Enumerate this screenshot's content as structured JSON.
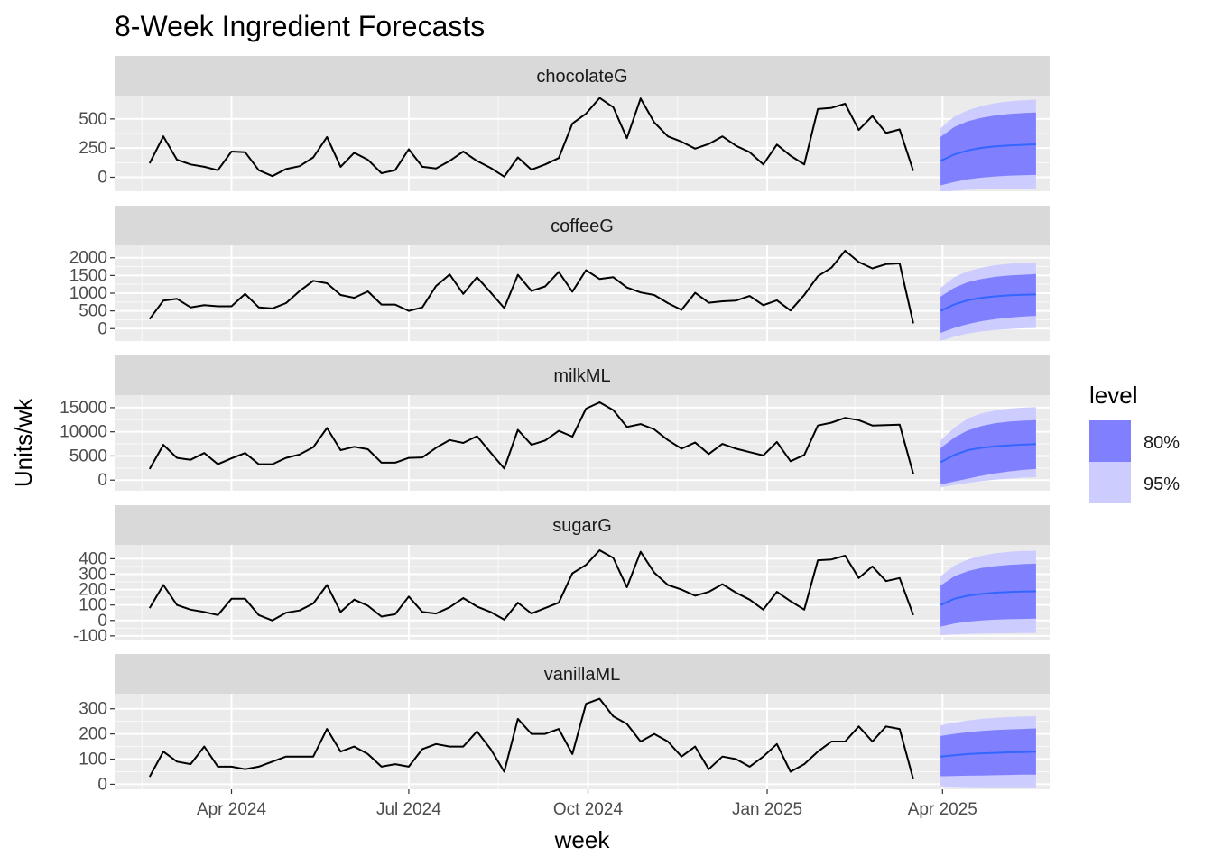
{
  "chart_data": {
    "type": "line",
    "title": "8-Week Ingredient Forecasts",
    "xlabel": "week",
    "ylabel": "Units/wk",
    "x_ticks": [
      "Apr 2024",
      "Jul 2024",
      "Oct 2024",
      "Jan 2025",
      "Apr 2025"
    ],
    "x_range": [
      "2024-02-01",
      "2025-05-26"
    ],
    "history_start": "2024-02-19",
    "forecast_start": "2025-03-31",
    "legend": {
      "title": "level",
      "position": "right",
      "entries": [
        {
          "label": "80%",
          "color": "#8080FF"
        },
        {
          "label": "95%",
          "color": "#CCCCFF"
        }
      ]
    },
    "colors": {
      "history_line": "#000000",
      "forecast_line": "#3366FF",
      "panel_bg": "#EBEBEB",
      "strip_bg": "#D9D9D9",
      "grid": "#FFFFFF"
    },
    "panels": [
      {
        "name": "chocolateG",
        "ylim": [
          -120,
          700
        ],
        "yticks": [
          0,
          250,
          500
        ],
        "history": [
          120,
          350,
          150,
          110,
          90,
          60,
          220,
          215,
          60,
          10,
          70,
          95,
          170,
          345,
          90,
          210,
          150,
          35,
          60,
          240,
          90,
          75,
          140,
          220,
          140,
          80,
          5,
          170,
          65,
          110,
          165,
          460,
          545,
          680,
          600,
          335,
          675,
          470,
          350,
          305,
          245,
          285,
          350,
          270,
          215,
          110,
          280,
          185,
          110,
          585,
          595,
          630,
          405,
          525,
          380,
          410,
          55
        ],
        "forecast": {
          "mean": [
            140,
            195,
            230,
            252,
            265,
            273,
            278,
            282
          ],
          "lo80": [
            -70,
            -40,
            -18,
            -3,
            7,
            13,
            18,
            20
          ],
          "hi80": [
            345,
            430,
            480,
            510,
            530,
            542,
            550,
            555
          ],
          "lo95": [
            -130,
            -115,
            -108,
            -104,
            -102,
            -101,
            -100,
            -100
          ],
          "hi95": [
            420,
            520,
            575,
            610,
            635,
            650,
            660,
            665
          ]
        }
      },
      {
        "name": "coffeeG",
        "ylim": [
          -350,
          2350
        ],
        "yticks": [
          0,
          500,
          1000,
          1500,
          2000
        ],
        "history": [
          270,
          790,
          840,
          600,
          660,
          630,
          630,
          980,
          600,
          570,
          720,
          1060,
          1350,
          1280,
          950,
          870,
          1050,
          680,
          680,
          500,
          600,
          1200,
          1530,
          980,
          1450,
          1020,
          580,
          1520,
          1060,
          1190,
          1600,
          1040,
          1650,
          1400,
          1450,
          1160,
          1020,
          950,
          720,
          530,
          1010,
          730,
          770,
          790,
          920,
          660,
          800,
          510,
          950,
          1480,
          1720,
          2200,
          1880,
          1700,
          1820,
          1840,
          150
        ],
        "forecast": {
          "mean": [
            500,
            680,
            800,
            870,
            910,
            940,
            955,
            965
          ],
          "lo80": [
            -120,
            20,
            130,
            210,
            270,
            310,
            340,
            360
          ],
          "hi80": [
            900,
            1150,
            1310,
            1400,
            1460,
            1500,
            1520,
            1540
          ],
          "lo95": [
            -350,
            -230,
            -140,
            -80,
            -40,
            -10,
            10,
            20
          ],
          "hi95": [
            1150,
            1450,
            1620,
            1720,
            1790,
            1830,
            1850,
            1860
          ]
        }
      },
      {
        "name": "milkML",
        "ylim": [
          -2200,
          17600
        ],
        "yticks": [
          0,
          5000,
          10000,
          15000
        ],
        "history": [
          2300,
          7300,
          4600,
          4200,
          5600,
          3300,
          4500,
          5600,
          3300,
          3300,
          4600,
          5300,
          6800,
          10800,
          6200,
          6900,
          6400,
          3600,
          3600,
          4600,
          4700,
          6700,
          8300,
          7700,
          9100,
          5700,
          2400,
          10400,
          7300,
          8200,
          10200,
          9000,
          14800,
          16100,
          14500,
          11000,
          11600,
          10500,
          8300,
          6500,
          7800,
          5400,
          7500,
          6500,
          5800,
          5100,
          7900,
          3900,
          5200,
          11300,
          11900,
          12900,
          12400,
          11300,
          11400,
          11500,
          1300
        ],
        "forecast": {
          "mean": [
            3700,
            5200,
            6200,
            6700,
            7000,
            7200,
            7350,
            7450
          ],
          "lo80": [
            -900,
            -300,
            300,
            900,
            1400,
            1800,
            2100,
            2300
          ],
          "hi80": [
            6600,
            8800,
            10300,
            11200,
            11800,
            12100,
            12300,
            12400
          ],
          "lo95": [
            -1500,
            -1000,
            -600,
            -200,
            100,
            300,
            500,
            600
          ],
          "hi95": [
            8200,
            10800,
            12800,
            13800,
            14400,
            14800,
            15000,
            15100
          ]
        }
      },
      {
        "name": "sugarG",
        "ylim": [
          -130,
          490
        ],
        "yticks": [
          -100,
          0,
          100,
          200,
          300,
          400
        ],
        "history": [
          80,
          230,
          100,
          70,
          55,
          35,
          140,
          140,
          35,
          0,
          50,
          65,
          110,
          230,
          55,
          135,
          95,
          25,
          40,
          155,
          55,
          45,
          85,
          145,
          90,
          55,
          5,
          115,
          45,
          80,
          115,
          305,
          360,
          455,
          405,
          215,
          445,
          310,
          230,
          200,
          160,
          185,
          235,
          180,
          135,
          70,
          185,
          125,
          70,
          390,
          395,
          420,
          275,
          350,
          255,
          275,
          35
        ],
        "forecast": {
          "mean": [
            100,
            140,
            160,
            172,
            180,
            184,
            187,
            189
          ],
          "lo80": [
            -40,
            -20,
            -8,
            0,
            5,
            8,
            10,
            12
          ],
          "hi80": [
            225,
            285,
            320,
            340,
            352,
            360,
            365,
            368
          ],
          "lo95": [
            -95,
            -90,
            -87,
            -85,
            -84,
            -83,
            -82,
            -82
          ],
          "hi95": [
            285,
            355,
            395,
            420,
            435,
            445,
            450,
            452
          ]
        }
      },
      {
        "name": "vanillaML",
        "ylim": [
          -20,
          360
        ],
        "yticks": [
          0,
          100,
          200,
          300
        ],
        "history": [
          30,
          130,
          90,
          80,
          150,
          70,
          70,
          60,
          70,
          90,
          110,
          110,
          110,
          220,
          130,
          150,
          120,
          70,
          80,
          70,
          140,
          160,
          150,
          150,
          210,
          140,
          50,
          260,
          200,
          200,
          220,
          120,
          320,
          340,
          270,
          240,
          170,
          200,
          170,
          110,
          150,
          60,
          110,
          100,
          70,
          110,
          160,
          50,
          80,
          130,
          170,
          170,
          230,
          170,
          230,
          220,
          20
        ],
        "forecast": {
          "mean": [
            110,
            115,
            120,
            123,
            125,
            127,
            128,
            130
          ],
          "lo80": [
            32,
            33,
            34,
            35,
            36,
            37,
            38,
            38
          ],
          "hi80": [
            192,
            200,
            207,
            212,
            216,
            218,
            220,
            222
          ],
          "lo95": [
            -8,
            -10,
            -11,
            -12,
            -12,
            -12,
            -12,
            -12
          ],
          "hi95": [
            234,
            245,
            253,
            260,
            264,
            267,
            269,
            271
          ]
        }
      }
    ]
  }
}
